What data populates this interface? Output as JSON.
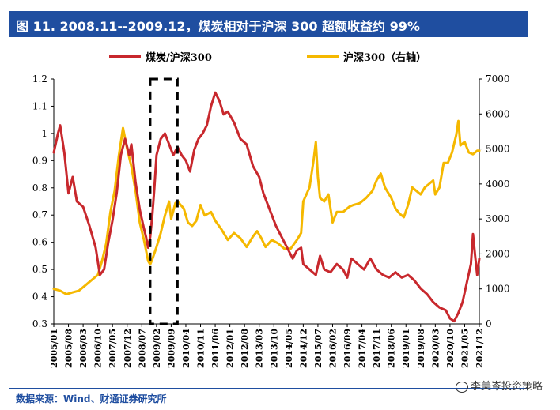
{
  "header": {
    "title": "图 11. 2008.11--2009.12，煤炭相对于沪深 300 超额收益约 99%"
  },
  "footer": {
    "source": "数据来源：Wind、财通证券研究所",
    "watermark": "李美岑投资策略"
  },
  "colors": {
    "coal": "#c8282d",
    "hs300": "#f5b800",
    "brand": "#1f4ea0"
  },
  "chart_data": {
    "type": "line",
    "title": "",
    "legend": {
      "placement": "top-center"
    },
    "y_left": {
      "min": 0.3,
      "max": 1.2,
      "ticks": [
        "0.3",
        "0.4",
        "0.5",
        "0.6",
        "0.7",
        "0.8",
        "0.9",
        "1",
        "1.1",
        "1.2"
      ]
    },
    "y_right": {
      "min": 0,
      "max": 7000,
      "ticks": [
        "0",
        "1000",
        "2000",
        "3000",
        "4000",
        "5000",
        "6000",
        "7000"
      ]
    },
    "x_start": "2005-01",
    "x_end": "2021-12",
    "x_ticks": [
      "2005/01",
      "2005/08",
      "2006/03",
      "2006/10",
      "2007/05",
      "2007/12",
      "2008/07",
      "2009/02",
      "2009/09",
      "2010/04",
      "2010/11",
      "2011/06",
      "2012/01",
      "2012/08",
      "2013/03",
      "2013/10",
      "2014/05",
      "2014/12",
      "2015/07",
      "2016/02",
      "2016/09",
      "2017/04",
      "2017/11",
      "2018/06",
      "2019/01",
      "2019/08",
      "2020/03",
      "2020/10",
      "2021/05",
      "2021/12"
    ],
    "highlight": {
      "from": "2008-11",
      "to": "2009-12"
    },
    "series": [
      {
        "name": "煤炭/沪深300",
        "axis": "left",
        "color": "#c8282d",
        "points": [
          [
            "2005-01",
            0.93
          ],
          [
            "2005-03",
            1.0
          ],
          [
            "2005-04",
            1.03
          ],
          [
            "2005-06",
            0.93
          ],
          [
            "2005-08",
            0.78
          ],
          [
            "2005-10",
            0.84
          ],
          [
            "2005-12",
            0.75
          ],
          [
            "2006-03",
            0.73
          ],
          [
            "2006-06",
            0.66
          ],
          [
            "2006-09",
            0.58
          ],
          [
            "2006-11",
            0.48
          ],
          [
            "2007-01",
            0.5
          ],
          [
            "2007-03",
            0.6
          ],
          [
            "2007-05",
            0.68
          ],
          [
            "2007-07",
            0.78
          ],
          [
            "2007-09",
            0.92
          ],
          [
            "2007-11",
            0.98
          ],
          [
            "2008-01",
            0.92
          ],
          [
            "2008-02",
            0.96
          ],
          [
            "2008-04",
            0.82
          ],
          [
            "2008-06",
            0.72
          ],
          [
            "2008-08",
            0.65
          ],
          [
            "2008-09",
            0.62
          ],
          [
            "2008-10",
            0.58
          ],
          [
            "2008-11",
            0.62
          ],
          [
            "2008-12",
            0.7
          ],
          [
            "2009-01",
            0.8
          ],
          [
            "2009-02",
            0.92
          ],
          [
            "2009-04",
            0.98
          ],
          [
            "2009-06",
            1.0
          ],
          [
            "2009-08",
            0.96
          ],
          [
            "2009-10",
            0.92
          ],
          [
            "2009-12",
            0.95
          ],
          [
            "2010-02",
            0.92
          ],
          [
            "2010-04",
            0.9
          ],
          [
            "2010-06",
            0.86
          ],
          [
            "2010-08",
            0.94
          ],
          [
            "2010-10",
            0.98
          ],
          [
            "2010-12",
            1.0
          ],
          [
            "2011-02",
            1.03
          ],
          [
            "2011-04",
            1.1
          ],
          [
            "2011-06",
            1.15
          ],
          [
            "2011-08",
            1.12
          ],
          [
            "2011-10",
            1.07
          ],
          [
            "2011-12",
            1.08
          ],
          [
            "2012-03",
            1.04
          ],
          [
            "2012-06",
            0.98
          ],
          [
            "2012-09",
            0.96
          ],
          [
            "2012-12",
            0.88
          ],
          [
            "2013-03",
            0.84
          ],
          [
            "2013-05",
            0.78
          ],
          [
            "2013-07",
            0.74
          ],
          [
            "2013-09",
            0.7
          ],
          [
            "2013-11",
            0.66
          ],
          [
            "2014-01",
            0.63
          ],
          [
            "2014-03",
            0.6
          ],
          [
            "2014-05",
            0.57
          ],
          [
            "2014-07",
            0.54
          ],
          [
            "2014-09",
            0.57
          ],
          [
            "2014-11",
            0.58
          ],
          [
            "2014-12",
            0.52
          ],
          [
            "2015-03",
            0.5
          ],
          [
            "2015-06",
            0.48
          ],
          [
            "2015-08",
            0.55
          ],
          [
            "2015-10",
            0.5
          ],
          [
            "2016-01",
            0.49
          ],
          [
            "2016-04",
            0.52
          ],
          [
            "2016-07",
            0.5
          ],
          [
            "2016-09",
            0.47
          ],
          [
            "2016-11",
            0.54
          ],
          [
            "2017-02",
            0.52
          ],
          [
            "2017-05",
            0.5
          ],
          [
            "2017-08",
            0.54
          ],
          [
            "2017-11",
            0.5
          ],
          [
            "2018-02",
            0.48
          ],
          [
            "2018-05",
            0.47
          ],
          [
            "2018-08",
            0.49
          ],
          [
            "2018-11",
            0.47
          ],
          [
            "2019-02",
            0.48
          ],
          [
            "2019-05",
            0.46
          ],
          [
            "2019-08",
            0.43
          ],
          [
            "2019-11",
            0.41
          ],
          [
            "2020-02",
            0.38
          ],
          [
            "2020-05",
            0.36
          ],
          [
            "2020-08",
            0.35
          ],
          [
            "2020-10",
            0.32
          ],
          [
            "2020-12",
            0.31
          ],
          [
            "2021-02",
            0.34
          ],
          [
            "2021-04",
            0.38
          ],
          [
            "2021-06",
            0.45
          ],
          [
            "2021-08",
            0.52
          ],
          [
            "2021-09",
            0.63
          ],
          [
            "2021-10",
            0.55
          ],
          [
            "2021-11",
            0.48
          ],
          [
            "2021-12",
            0.54
          ]
        ]
      },
      {
        "name": "沪深300（右轴）",
        "axis": "right",
        "color": "#f5b800",
        "points": [
          [
            "2005-01",
            1000
          ],
          [
            "2005-04",
            950
          ],
          [
            "2005-07",
            850
          ],
          [
            "2005-10",
            900
          ],
          [
            "2006-01",
            950
          ],
          [
            "2006-04",
            1100
          ],
          [
            "2006-07",
            1250
          ],
          [
            "2006-10",
            1400
          ],
          [
            "2006-12",
            1800
          ],
          [
            "2007-02",
            2300
          ],
          [
            "2007-04",
            3200
          ],
          [
            "2007-06",
            3800
          ],
          [
            "2007-08",
            4800
          ],
          [
            "2007-10",
            5600
          ],
          [
            "2007-12",
            5000
          ],
          [
            "2008-02",
            4500
          ],
          [
            "2008-04",
            3800
          ],
          [
            "2008-06",
            2900
          ],
          [
            "2008-08",
            2400
          ],
          [
            "2008-10",
            1800
          ],
          [
            "2008-11",
            1700
          ],
          [
            "2008-12",
            1850
          ],
          [
            "2009-02",
            2200
          ],
          [
            "2009-04",
            2600
          ],
          [
            "2009-06",
            3100
          ],
          [
            "2009-08",
            3500
          ],
          [
            "2009-09",
            3000
          ],
          [
            "2009-11",
            3450
          ],
          [
            "2009-12",
            3500
          ],
          [
            "2010-03",
            3300
          ],
          [
            "2010-05",
            2900
          ],
          [
            "2010-07",
            2800
          ],
          [
            "2010-09",
            2950
          ],
          [
            "2010-11",
            3400
          ],
          [
            "2011-01",
            3100
          ],
          [
            "2011-04",
            3200
          ],
          [
            "2011-06",
            2950
          ],
          [
            "2011-09",
            2700
          ],
          [
            "2011-12",
            2400
          ],
          [
            "2012-03",
            2600
          ],
          [
            "2012-06",
            2450
          ],
          [
            "2012-09",
            2200
          ],
          [
            "2012-12",
            2500
          ],
          [
            "2013-02",
            2650
          ],
          [
            "2013-04",
            2450
          ],
          [
            "2013-06",
            2200
          ],
          [
            "2013-09",
            2400
          ],
          [
            "2013-12",
            2300
          ],
          [
            "2014-03",
            2150
          ],
          [
            "2014-06",
            2150
          ],
          [
            "2014-09",
            2400
          ],
          [
            "2014-11",
            2600
          ],
          [
            "2014-12",
            3500
          ],
          [
            "2015-03",
            3900
          ],
          [
            "2015-05",
            4700
          ],
          [
            "2015-06",
            5200
          ],
          [
            "2015-07",
            4200
          ],
          [
            "2015-08",
            3600
          ],
          [
            "2015-10",
            3500
          ],
          [
            "2015-12",
            3700
          ],
          [
            "2016-02",
            2900
          ],
          [
            "2016-04",
            3200
          ],
          [
            "2016-07",
            3200
          ],
          [
            "2016-10",
            3350
          ],
          [
            "2016-12",
            3400
          ],
          [
            "2017-03",
            3450
          ],
          [
            "2017-06",
            3600
          ],
          [
            "2017-09",
            3800
          ],
          [
            "2017-11",
            4100
          ],
          [
            "2018-01",
            4300
          ],
          [
            "2018-03",
            3900
          ],
          [
            "2018-06",
            3600
          ],
          [
            "2018-08",
            3300
          ],
          [
            "2018-10",
            3150
          ],
          [
            "2018-12",
            3050
          ],
          [
            "2019-02",
            3400
          ],
          [
            "2019-04",
            3900
          ],
          [
            "2019-06",
            3800
          ],
          [
            "2019-08",
            3700
          ],
          [
            "2019-10",
            3900
          ],
          [
            "2019-12",
            4000
          ],
          [
            "2020-02",
            4100
          ],
          [
            "2020-03",
            3700
          ],
          [
            "2020-05",
            3900
          ],
          [
            "2020-07",
            4600
          ],
          [
            "2020-09",
            4600
          ],
          [
            "2020-11",
            4900
          ],
          [
            "2021-01",
            5400
          ],
          [
            "2021-02",
            5800
          ],
          [
            "2021-03",
            5100
          ],
          [
            "2021-05",
            5200
          ],
          [
            "2021-07",
            4900
          ],
          [
            "2021-09",
            4850
          ],
          [
            "2021-11",
            4950
          ],
          [
            "2021-12",
            4950
          ]
        ]
      }
    ]
  }
}
